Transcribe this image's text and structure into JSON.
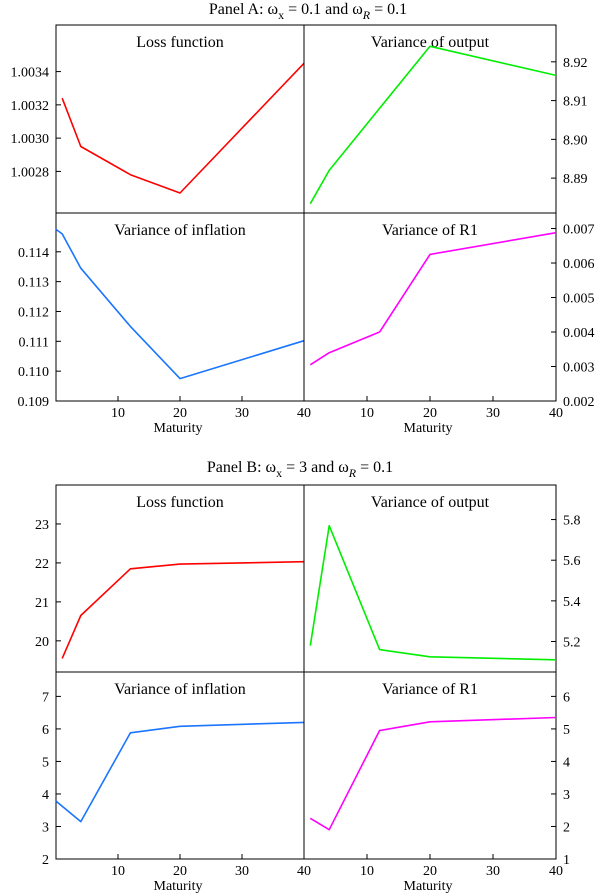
{
  "panels": [
    {
      "title_prefix": "Panel A: ",
      "omega": "ω",
      "sub_x": "x",
      "eq_x": " = 0.1 and ",
      "sub_R": "R",
      "eq_R": " = 0.1"
    },
    {
      "title_prefix": "Panel B: ",
      "omega": "ω",
      "sub_x": "x",
      "eq_x": " = 3 and ",
      "sub_R": "R",
      "eq_R": " = 0.1"
    }
  ],
  "chart_data": [
    {
      "type": "line",
      "panel": "A",
      "title": "Loss function",
      "color": "#ff0000",
      "x": [
        1,
        4,
        12,
        20,
        40
      ],
      "y": [
        1.00324,
        1.00295,
        1.00278,
        1.00267,
        1.00345
      ],
      "xlim": [
        0,
        40
      ],
      "ylim": [
        1.00255,
        1.00368
      ],
      "yticks": [
        1.0028,
        1.003,
        1.0032,
        1.0034
      ],
      "ytick_labels": [
        "1.0028",
        "1.0030",
        "1.0032",
        "1.0034"
      ],
      "yaxis_side": "left",
      "xticks": [],
      "xtick_labels": [],
      "xlabel": ""
    },
    {
      "type": "line",
      "panel": "A",
      "title": "Variance of output",
      "color": "#00ee00",
      "x": [
        1,
        4,
        12,
        20,
        40
      ],
      "y": [
        8.8834,
        8.892,
        8.908,
        8.924,
        8.9165
      ],
      "xlim": [
        0,
        40
      ],
      "ylim": [
        8.881,
        8.9295
      ],
      "yticks": [
        8.89,
        8.9,
        8.91,
        8.92
      ],
      "ytick_labels": [
        "8.89",
        "8.90",
        "8.91",
        "8.92"
      ],
      "yaxis_side": "right",
      "xticks": [],
      "xtick_labels": [],
      "xlabel": ""
    },
    {
      "type": "line",
      "panel": "A",
      "title": "Variance of inflation",
      "color": "#1a75ff",
      "x": [
        0,
        1,
        4,
        12,
        20,
        40
      ],
      "y": [
        0.11475,
        0.1146,
        0.11345,
        0.1115,
        0.10975,
        0.11102
      ],
      "xlim": [
        0,
        40
      ],
      "ylim": [
        0.109,
        0.1153
      ],
      "yticks": [
        0.109,
        0.11,
        0.111,
        0.112,
        0.113,
        0.114
      ],
      "ytick_labels": [
        "0.109",
        "0.110",
        "0.111",
        "0.112",
        "0.113",
        "0.114"
      ],
      "yaxis_side": "left",
      "xticks": [
        10,
        20,
        30,
        40
      ],
      "xtick_labels": [
        "10",
        "20",
        "30",
        "40"
      ],
      "xlabel": "Maturity"
    },
    {
      "type": "line",
      "panel": "A",
      "title": "Variance of R1",
      "color": "#ff00ff",
      "x": [
        1,
        4,
        12,
        20,
        40
      ],
      "y": [
        0.00305,
        0.0034,
        0.004,
        0.00625,
        0.00688
      ],
      "xlim": [
        0,
        40
      ],
      "ylim": [
        0.002,
        0.00745
      ],
      "yticks": [
        0.002,
        0.003,
        0.004,
        0.005,
        0.006,
        0.007
      ],
      "ytick_labels": [
        "0.002",
        "0.003",
        "0.004",
        "0.005",
        "0.006",
        "0.007"
      ],
      "yaxis_side": "right",
      "xticks": [
        10,
        20,
        30,
        40
      ],
      "xtick_labels": [
        "10",
        "20",
        "30",
        "40"
      ],
      "xlabel": "Maturity"
    },
    {
      "type": "line",
      "panel": "B",
      "title": "Loss function",
      "color": "#ff0000",
      "x": [
        1,
        4,
        12,
        20,
        40
      ],
      "y": [
        19.55,
        20.65,
        21.85,
        21.97,
        22.03
      ],
      "xlim": [
        0,
        40
      ],
      "ylim": [
        19.2,
        24.0
      ],
      "yticks": [
        20,
        21,
        22,
        23
      ],
      "ytick_labels": [
        "20",
        "21",
        "22",
        "23"
      ],
      "yaxis_side": "left",
      "xticks": [],
      "xtick_labels": [],
      "xlabel": ""
    },
    {
      "type": "line",
      "panel": "B",
      "title": "Variance of output",
      "color": "#00ee00",
      "x": [
        1,
        4,
        12,
        20,
        40
      ],
      "y": [
        5.18,
        5.77,
        5.16,
        5.125,
        5.11
      ],
      "xlim": [
        0,
        40
      ],
      "ylim": [
        5.05,
        5.97
      ],
      "yticks": [
        5.2,
        5.4,
        5.6,
        5.8
      ],
      "ytick_labels": [
        "5.2",
        "5.4",
        "5.6",
        "5.8"
      ],
      "yaxis_side": "right",
      "xticks": [],
      "xtick_labels": [],
      "xlabel": ""
    },
    {
      "type": "line",
      "panel": "B",
      "title": "Variance of inflation",
      "color": "#1a75ff",
      "x": [
        0,
        4,
        12,
        20,
        40
      ],
      "y": [
        3.78,
        3.15,
        5.88,
        6.08,
        6.2
      ],
      "xlim": [
        0,
        40
      ],
      "ylim": [
        2,
        7.75
      ],
      "yticks": [
        2,
        3,
        4,
        5,
        6,
        7
      ],
      "ytick_labels": [
        "2",
        "3",
        "4",
        "5",
        "6",
        "7"
      ],
      "yaxis_side": "left",
      "xticks": [
        10,
        20,
        30,
        40
      ],
      "xtick_labels": [
        "10",
        "20",
        "30",
        "40"
      ],
      "xlabel": "Maturity"
    },
    {
      "type": "line",
      "panel": "B",
      "title": "Variance of R1",
      "color": "#ff00ff",
      "x": [
        1,
        4,
        12,
        20,
        40
      ],
      "y": [
        2.25,
        1.9,
        4.95,
        5.22,
        5.35
      ],
      "xlim": [
        0,
        40
      ],
      "ylim": [
        1,
        6.75
      ],
      "yticks": [
        1,
        2,
        3,
        4,
        5,
        6
      ],
      "ytick_labels": [
        "1",
        "2",
        "3",
        "4",
        "5",
        "6"
      ],
      "yaxis_side": "right",
      "xticks": [
        10,
        20,
        30,
        40
      ],
      "xtick_labels": [
        "10",
        "20",
        "30",
        "40"
      ],
      "xlabel": "Maturity"
    }
  ]
}
